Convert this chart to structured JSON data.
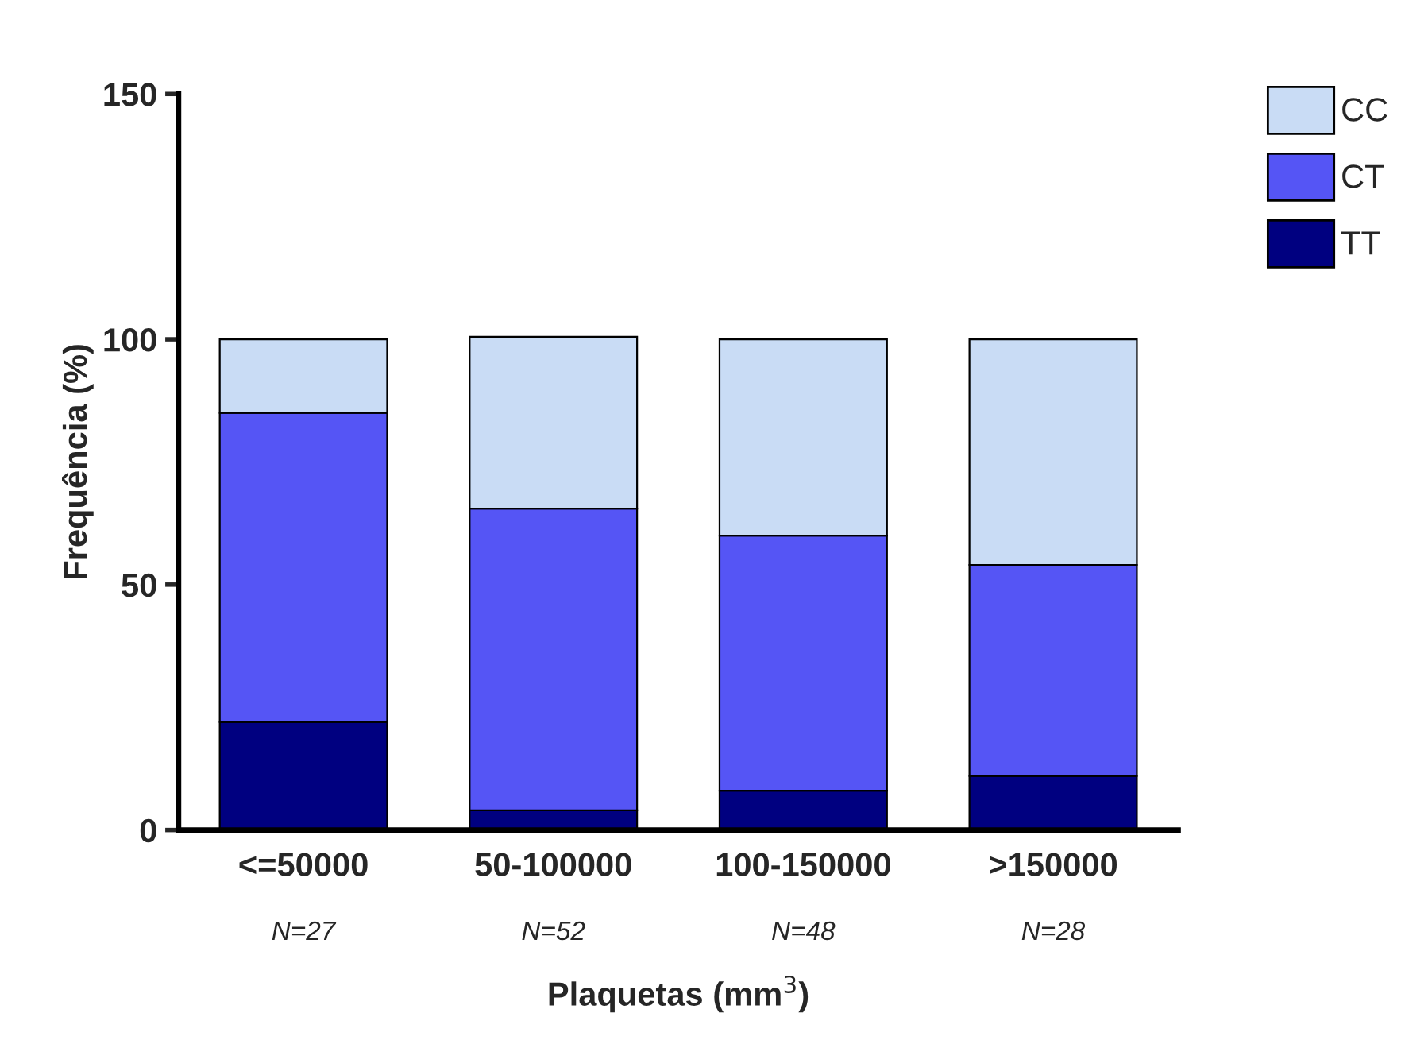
{
  "chart_data": {
    "type": "bar",
    "stacked": true,
    "xlabel": "Plaquetas (mm$^{3}$)",
    "ylabel": "Frequência (%)",
    "categories": [
      "<=50000",
      "50-100000",
      "100-150000",
      ">150000"
    ],
    "series": [
      {
        "name": "TT",
        "color": "#000080",
        "values": [
          22,
          4,
          8,
          11
        ]
      },
      {
        "name": "CT",
        "color": "#5555f5",
        "values": [
          63,
          61.5,
          52,
          43
        ]
      },
      {
        "name": "CC",
        "color": "#c9dcf5",
        "values": [
          15,
          35,
          40,
          46
        ]
      }
    ],
    "ylim": [
      0,
      150
    ],
    "yticks": [
      0,
      50,
      100,
      150
    ],
    "grid": false,
    "legend": "top right",
    "annotations": [
      "N=27",
      "N=52",
      "N=48",
      "N=28"
    ]
  }
}
